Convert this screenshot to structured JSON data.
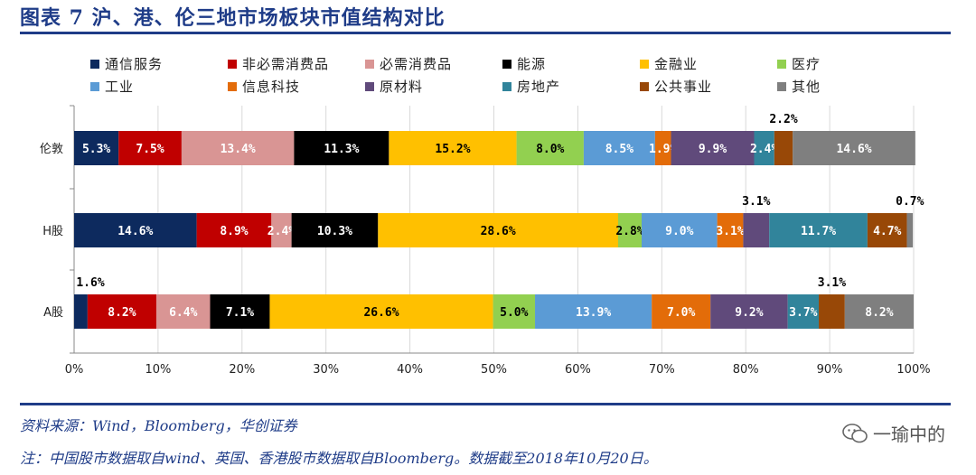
{
  "title": "图表 7 沪、港、伦三地市场板块市值结构对比",
  "legend": [
    {
      "name": "通信服务",
      "color": "#0d2a5e"
    },
    {
      "name": "非必需消费品",
      "color": "#c00000"
    },
    {
      "name": "必需消费品",
      "color": "#d99594"
    },
    {
      "name": "能源",
      "color": "#000000"
    },
    {
      "name": "金融业",
      "color": "#ffc000"
    },
    {
      "name": "医疗",
      "color": "#92d050"
    },
    {
      "name": "工业",
      "color": "#5b9bd5"
    },
    {
      "name": "信息科技",
      "color": "#e36c09"
    },
    {
      "name": "原材料",
      "color": "#604a7b"
    },
    {
      "name": "房地产",
      "color": "#31849b"
    },
    {
      "name": "公共事业",
      "color": "#984807"
    },
    {
      "name": "其他",
      "color": "#7f7f7f"
    }
  ],
  "chart_data": {
    "type": "bar",
    "stacked": true,
    "orientation": "horizontal",
    "categories": [
      "伦敦",
      "H股",
      "A股"
    ],
    "series": [
      {
        "name": "通信服务",
        "values": [
          5.3,
          14.6,
          1.6
        ]
      },
      {
        "name": "非必需消费品",
        "values": [
          7.5,
          8.9,
          8.2
        ]
      },
      {
        "name": "必需消费品",
        "values": [
          13.4,
          2.4,
          6.4
        ]
      },
      {
        "name": "能源",
        "values": [
          11.3,
          10.3,
          7.1
        ]
      },
      {
        "name": "金融业",
        "values": [
          15.2,
          28.6,
          26.6
        ]
      },
      {
        "name": "医疗",
        "values": [
          8.0,
          2.8,
          5.0
        ]
      },
      {
        "name": "工业",
        "values": [
          8.5,
          9.0,
          13.9
        ]
      },
      {
        "name": "信息科技",
        "values": [
          1.9,
          3.1,
          7.0
        ]
      },
      {
        "name": "原材料",
        "values": [
          9.9,
          3.1,
          9.2
        ]
      },
      {
        "name": "房地产",
        "values": [
          2.4,
          11.7,
          3.7
        ]
      },
      {
        "name": "公共事业",
        "values": [
          2.2,
          4.7,
          3.1
        ]
      },
      {
        "name": "其他",
        "values": [
          14.6,
          0.7,
          8.2
        ]
      }
    ],
    "data_labels": [
      [
        "5.3%",
        "7.5%",
        "13.4%",
        "11.3%",
        "15.2%",
        "8.0%",
        "8.5%",
        "1.9%",
        "9.9%",
        "2.4%",
        "2.2%",
        "14.6%"
      ],
      [
        "14.6%",
        "8.9%",
        "2.4%",
        "10.3%",
        "28.6%",
        "2.8%",
        "9.0%",
        "3.1%",
        "3.1%",
        "11.7%",
        "4.7%",
        "0.7%"
      ],
      [
        "1.6%",
        "8.2%",
        "6.4%",
        "7.1%",
        "26.6%",
        "5.0%",
        "13.9%",
        "7.0%",
        "9.2%",
        "3.7%",
        "3.1%",
        "8.2%"
      ]
    ],
    "x_ticks": [
      "0%",
      "10%",
      "20%",
      "30%",
      "40%",
      "50%",
      "60%",
      "70%",
      "80%",
      "90%",
      "100%"
    ],
    "xlim": [
      0,
      100
    ],
    "grid": true,
    "legend_position": "top"
  },
  "footer": {
    "source": "资料来源：Wind，Bloomberg，华创证券",
    "note": "注：中国股市数据取自wind、英国、香港股市数据取自Bloomberg。数据截至2018年10月20日。"
  },
  "watermark": "一瑜中的"
}
